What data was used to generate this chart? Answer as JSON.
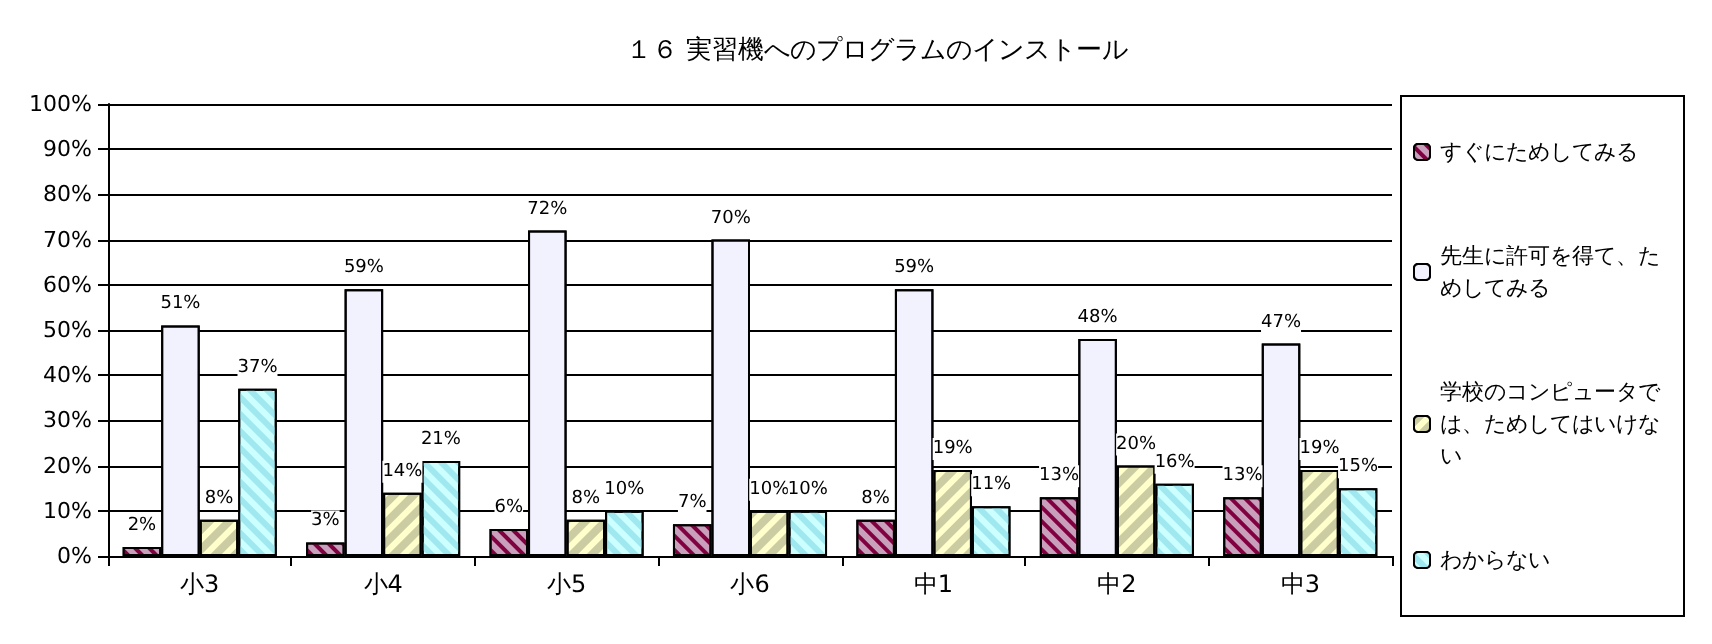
{
  "chart_data": {
    "type": "bar",
    "title": "１６ 実習機へのプログラムのインストール",
    "categories": [
      "小3",
      "小4",
      "小5",
      "小6",
      "中1",
      "中2",
      "中3"
    ],
    "series": [
      {
        "name": "すぐにためしてみる",
        "color": "#c8a0bc",
        "values": [
          2,
          3,
          6,
          7,
          8,
          13,
          13
        ],
        "value_labels": [
          "2%",
          "3%",
          "6%",
          "7%",
          "8%",
          "13%",
          "13%"
        ]
      },
      {
        "name": "先生に許可を得て、ためしてみる",
        "color": "#f2f2ff",
        "values": [
          51,
          59,
          72,
          70,
          59,
          48,
          47
        ],
        "value_labels": [
          "51%",
          "59%",
          "72%",
          "70%",
          "59%",
          "48%",
          "47%"
        ]
      },
      {
        "name": "学校のコンピュータでは、ためしてはいけない",
        "color": "#ffffcc",
        "values": [
          8,
          14,
          8,
          10,
          19,
          20,
          19
        ],
        "value_labels": [
          "8%",
          "14%",
          "8%",
          "10%",
          "19%",
          "20%",
          "19%"
        ]
      },
      {
        "name": "わからない",
        "color": "#ccffff",
        "values": [
          37,
          21,
          10,
          10,
          11,
          16,
          15
        ],
        "value_labels": [
          "37%",
          "21%",
          "10%",
          "10%",
          "11%",
          "16%",
          "15%"
        ]
      }
    ],
    "ylim": [
      0,
      100
    ],
    "yticks": [
      {
        "value": 0,
        "label": "0%"
      },
      {
        "value": 10,
        "label": "10%"
      },
      {
        "value": 20,
        "label": "20%"
      },
      {
        "value": 30,
        "label": "30%"
      },
      {
        "value": 40,
        "label": "40%"
      },
      {
        "value": 50,
        "label": "50%"
      },
      {
        "value": 60,
        "label": "60%"
      },
      {
        "value": 70,
        "label": "70%"
      },
      {
        "value": 80,
        "label": "80%"
      },
      {
        "value": 90,
        "label": "90%"
      },
      {
        "value": 100,
        "label": "100%"
      }
    ],
    "grid": "y",
    "legend": "right"
  }
}
